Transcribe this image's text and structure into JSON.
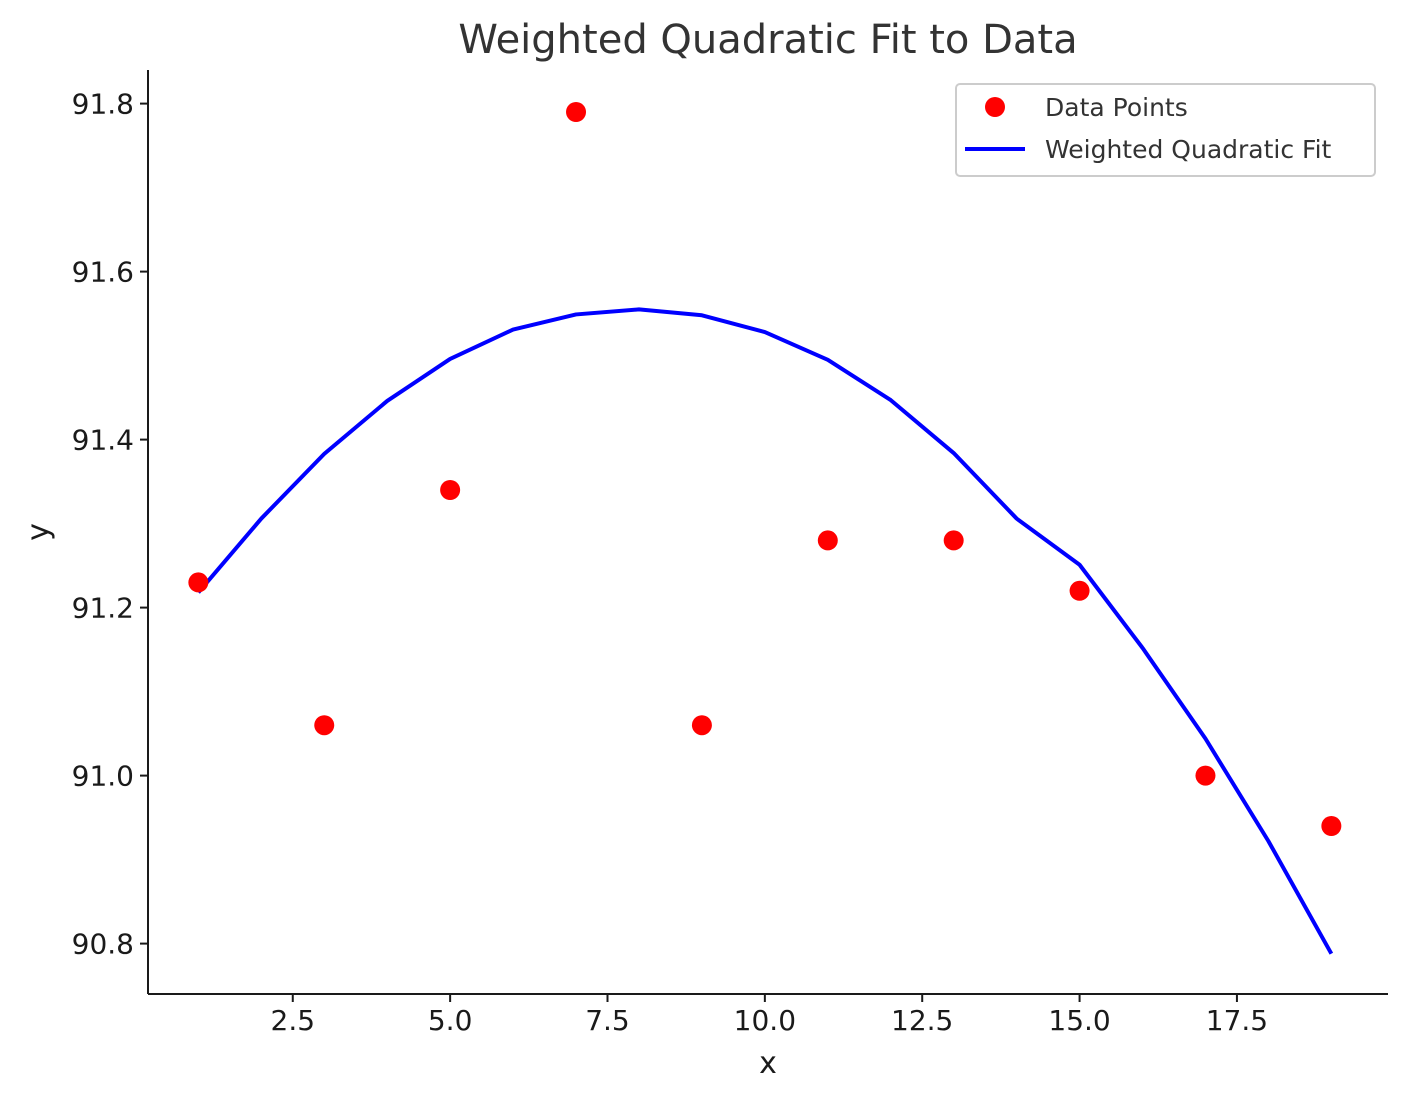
{
  "chart_data": {
    "type": "scatter",
    "title": "Weighted Quadratic Fit to Data",
    "xlabel": "x",
    "ylabel": "y",
    "xlim": [
      0.2,
      19.9
    ],
    "ylim": [
      90.74,
      91.84
    ],
    "xticks": [
      2.5,
      5.0,
      7.5,
      10.0,
      12.5,
      15.0,
      17.5
    ],
    "xtick_labels": [
      "2.5",
      "5.0",
      "7.5",
      "10.0",
      "12.5",
      "15.0",
      "17.5"
    ],
    "yticks": [
      90.8,
      91.0,
      91.2,
      91.4,
      91.6,
      91.8
    ],
    "ytick_labels": [
      "90.8",
      "91.0",
      "91.2",
      "91.4",
      "91.6",
      "91.8"
    ],
    "grid": false,
    "legend_position": "top-right",
    "series": [
      {
        "name": "Data Points",
        "kind": "scatter",
        "color": "#ff0000",
        "x": [
          1,
          3,
          5,
          7,
          9,
          11,
          13,
          15,
          17,
          19
        ],
        "y": [
          91.23,
          91.06,
          91.34,
          91.79,
          91.06,
          91.28,
          91.28,
          91.22,
          91.0,
          90.94
        ]
      },
      {
        "name": "Weighted Quadratic Fit",
        "kind": "line",
        "color": "#0000ff",
        "x": [
          1,
          2,
          3,
          4,
          5,
          6,
          7,
          8,
          9,
          10,
          11,
          12,
          13,
          14,
          15,
          16,
          17,
          18,
          19
        ],
        "y": [
          91.218,
          91.306,
          91.383,
          91.446,
          91.496,
          91.531,
          91.549,
          91.555,
          91.548,
          91.528,
          91.495,
          91.447,
          91.384,
          91.306,
          91.251,
          91.152,
          91.044,
          90.922,
          90.788
        ]
      }
    ]
  }
}
